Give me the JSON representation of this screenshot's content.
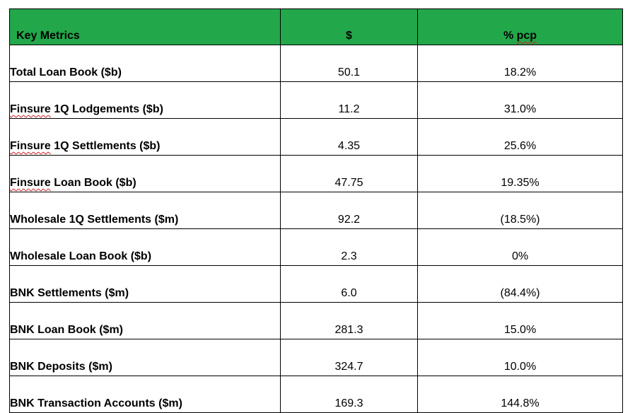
{
  "table": {
    "header_bg": "#22a84a",
    "columns": [
      "Key Metrics",
      "$",
      "% pcp"
    ],
    "rows": [
      {
        "metric": "Total Loan Book ($b)",
        "value": "50.1",
        "pcp": "18.2%"
      },
      {
        "metric": "Finsure 1Q Lodgements ($b)",
        "value": "11.2",
        "pcp": "31.0%"
      },
      {
        "metric": "Finsure 1Q Settlements ($b)",
        "value": "4.35",
        "pcp": "25.6%"
      },
      {
        "metric": "Finsure Loan Book ($b)",
        "value": "47.75",
        "pcp": "19.35%"
      },
      {
        "metric": "Wholesale 1Q Settlements ($m)",
        "value": "92.2",
        "pcp": "(18.5%)"
      },
      {
        "metric": "Wholesale Loan Book ($b)",
        "value": "2.3",
        "pcp": "0%"
      },
      {
        "metric": "BNK Settlements ($m)",
        "value": "6.0",
        "pcp": "(84.4%)"
      },
      {
        "metric": "BNK Loan Book ($m)",
        "value": "281.3",
        "pcp": "15.0%"
      },
      {
        "metric": "BNK Deposits ($m)",
        "value": "324.7",
        "pcp": "10.0%"
      },
      {
        "metric": "BNK Transaction Accounts ($m)",
        "value": "169.3",
        "pcp": "144.8%"
      }
    ]
  }
}
